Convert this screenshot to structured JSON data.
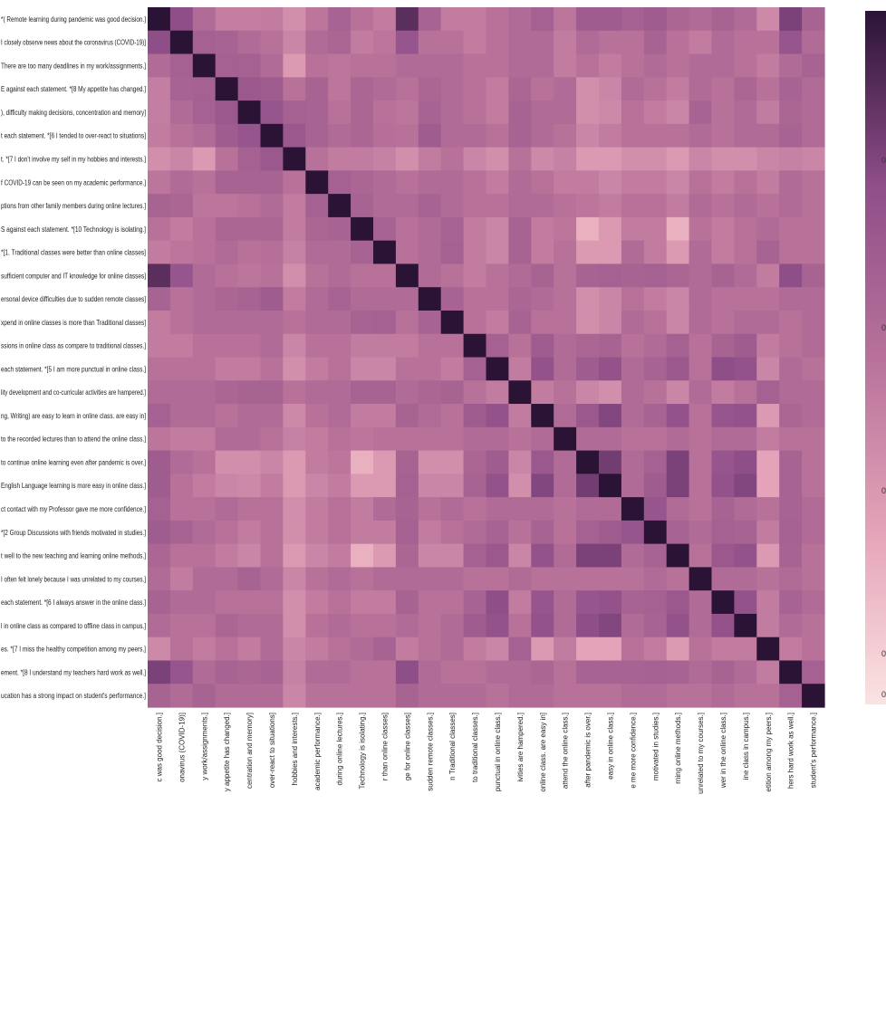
{
  "chart_data": {
    "type": "heatmap",
    "title": "",
    "xlabel": "",
    "ylabel": "",
    "row_labels": [
      "*( Remote learning during pandemic was good decision.]",
      "I closely observe news about the coronavirus (COVID-19)]",
      "There are too many deadlines in my work/assignments.]",
      "E against each statement. *[8 My appetite has changed.]",
      "), difficulty making decisions, concentration and memory]",
      "t each statement. *[6 I tended to over-react to situations]",
      "t. *[7 I don't involve my self in my hobbies and interests.]",
      "f COVID-19 can be seen on my academic performance.]",
      "ptions from other family members during online lectures.]",
      "S against each statement. *[10 Technology is isolating.]",
      "*[1. Traditional classes were better than online classes]",
      "sufficient computer and IT knowledge for online classes]",
      "ersonal device difficulties due to sudden remote classes]",
      "xpend in online classes is more than Traditional classes]",
      "ssions in online class as compare to traditional classes.]",
      "each statement. *[5 I am more punctual in online class.]",
      "lity development and co-curricular activities are hampered.]",
      "ng, Writing) are easy to learn in online class. are easy in]",
      "to the recorded lectures than to attend the online class.]",
      "to continue online learning even after pandemic is over.]",
      "English Language learning is more easy in online class.]",
      "ct contact with my Professor gave me more confidence.]",
      "*[2 Group Discussions with friends motivated in studies.]",
      "t well to the new teaching and learning online methods.]",
      "I often felt lonely because I was unrelated to my courses.]",
      "each statement. *[6 I always answer in the online class.]",
      "l in online class as compared to offline class in campus.]",
      "es. *[7 I miss the healthy competition among my peers.]",
      "ement. *[8 I understand my teachers hard work as well.]",
      "ucation has a strong impact on student's performance.]"
    ],
    "col_labels": [
      "c was good decision.]",
      "onavirus (COVID-19)]",
      "y work/assignments.]",
      "y appetite has changed.]",
      "centration and memory]",
      "over-react to situations]",
      "hobbies and interests.]",
      "academic performance.]",
      "during online lectures.]",
      "Technology is isolating.]",
      "r than online classes]",
      "ge for online classes]",
      "sudden remote classes.]",
      "n Traditional classes]",
      "to traditional classes.]",
      "punctual in online class.]",
      "ivities are hampered.]",
      "online class. are easy in]",
      "attend the online class.]",
      "after pandemic is over.]",
      "easy in online class.]",
      "e me more confidence.]",
      "motivated in studies.]",
      "rning online methods.]",
      "unrelated to my courses.]",
      "wer in the online class.]",
      "ine class in campus.]",
      "etition among my peers.]",
      "hers hard work as well.]",
      "student's performance.]"
    ],
    "colorbar_ticks": [
      "0",
      "0",
      "0",
      "0",
      "0"
    ],
    "vmin": 0.0,
    "vmax": 1.0,
    "colors": {
      "low": "#fbe3e2",
      "mid_low": "#e4a3b8",
      "mid": "#b8729a",
      "mid_high": "#8e4e88",
      "high": "#2b1336"
    },
    "values": [
      [
        1,
        0.75,
        0.55,
        0.44,
        0.44,
        0.45,
        0.35,
        0.48,
        0.6,
        0.5,
        0.45,
        0.88,
        0.6,
        0.45,
        0.45,
        0.5,
        0.55,
        0.62,
        0.48,
        0.65,
        0.65,
        0.62,
        0.65,
        0.58,
        0.55,
        0.6,
        0.55,
        0.38,
        0.8,
        0.6
      ],
      [
        0.75,
        1,
        0.62,
        0.6,
        0.55,
        0.5,
        0.4,
        0.55,
        0.58,
        0.45,
        0.48,
        0.7,
        0.5,
        0.5,
        0.45,
        0.5,
        0.55,
        0.55,
        0.45,
        0.55,
        0.5,
        0.5,
        0.6,
        0.5,
        0.45,
        0.55,
        0.5,
        0.5,
        0.7,
        0.55
      ],
      [
        0.55,
        0.62,
        1,
        0.62,
        0.62,
        0.55,
        0.3,
        0.5,
        0.48,
        0.5,
        0.5,
        0.55,
        0.55,
        0.55,
        0.5,
        0.5,
        0.55,
        0.55,
        0.45,
        0.5,
        0.45,
        0.5,
        0.55,
        0.5,
        0.55,
        0.55,
        0.5,
        0.45,
        0.55,
        0.6
      ],
      [
        0.44,
        0.6,
        0.62,
        1,
        0.68,
        0.65,
        0.5,
        0.6,
        0.48,
        0.58,
        0.55,
        0.5,
        0.58,
        0.55,
        0.5,
        0.45,
        0.58,
        0.5,
        0.55,
        0.35,
        0.4,
        0.55,
        0.5,
        0.45,
        0.55,
        0.5,
        0.58,
        0.5,
        0.6,
        0.55
      ],
      [
        0.44,
        0.55,
        0.62,
        0.68,
        1,
        0.7,
        0.62,
        0.6,
        0.5,
        0.58,
        0.5,
        0.48,
        0.6,
        0.55,
        0.5,
        0.45,
        0.6,
        0.55,
        0.55,
        0.35,
        0.38,
        0.5,
        0.45,
        0.4,
        0.6,
        0.5,
        0.55,
        0.45,
        0.58,
        0.55
      ],
      [
        0.45,
        0.5,
        0.55,
        0.65,
        0.7,
        1,
        0.68,
        0.6,
        0.55,
        0.58,
        0.52,
        0.5,
        0.65,
        0.55,
        0.55,
        0.5,
        0.6,
        0.55,
        0.5,
        0.4,
        0.45,
        0.5,
        0.5,
        0.5,
        0.55,
        0.5,
        0.55,
        0.55,
        0.6,
        0.55
      ],
      [
        0.35,
        0.4,
        0.3,
        0.5,
        0.62,
        0.68,
        1,
        0.5,
        0.45,
        0.45,
        0.42,
        0.35,
        0.45,
        0.5,
        0.4,
        0.35,
        0.5,
        0.38,
        0.42,
        0.3,
        0.3,
        0.35,
        0.35,
        0.3,
        0.4,
        0.35,
        0.35,
        0.4,
        0.42,
        0.4
      ],
      [
        0.48,
        0.55,
        0.5,
        0.6,
        0.6,
        0.6,
        0.5,
        1,
        0.62,
        0.58,
        0.55,
        0.5,
        0.55,
        0.55,
        0.5,
        0.45,
        0.55,
        0.5,
        0.45,
        0.45,
        0.4,
        0.45,
        0.45,
        0.4,
        0.5,
        0.45,
        0.5,
        0.45,
        0.55,
        0.5
      ],
      [
        0.6,
        0.58,
        0.48,
        0.48,
        0.5,
        0.55,
        0.45,
        0.62,
        1,
        0.6,
        0.55,
        0.55,
        0.6,
        0.55,
        0.5,
        0.5,
        0.55,
        0.55,
        0.5,
        0.48,
        0.45,
        0.5,
        0.5,
        0.45,
        0.55,
        0.5,
        0.55,
        0.5,
        0.55,
        0.5
      ],
      [
        0.5,
        0.45,
        0.5,
        0.58,
        0.58,
        0.58,
        0.45,
        0.58,
        0.6,
        1,
        0.6,
        0.5,
        0.55,
        0.6,
        0.45,
        0.4,
        0.6,
        0.45,
        0.48,
        0.2,
        0.3,
        0.45,
        0.45,
        0.2,
        0.5,
        0.45,
        0.5,
        0.55,
        0.5,
        0.5
      ],
      [
        0.45,
        0.48,
        0.5,
        0.55,
        0.5,
        0.52,
        0.42,
        0.55,
        0.55,
        0.6,
        1,
        0.5,
        0.55,
        0.62,
        0.45,
        0.4,
        0.6,
        0.45,
        0.5,
        0.3,
        0.3,
        0.55,
        0.45,
        0.3,
        0.55,
        0.45,
        0.5,
        0.6,
        0.5,
        0.5
      ],
      [
        0.88,
        0.7,
        0.55,
        0.5,
        0.48,
        0.5,
        0.35,
        0.5,
        0.55,
        0.5,
        0.5,
        1,
        0.55,
        0.5,
        0.45,
        0.5,
        0.55,
        0.6,
        0.5,
        0.6,
        0.62,
        0.6,
        0.62,
        0.58,
        0.55,
        0.6,
        0.55,
        0.45,
        0.75,
        0.6
      ],
      [
        0.6,
        0.5,
        0.55,
        0.58,
        0.6,
        0.65,
        0.45,
        0.55,
        0.6,
        0.55,
        0.55,
        0.55,
        1,
        0.6,
        0.5,
        0.5,
        0.58,
        0.55,
        0.5,
        0.35,
        0.4,
        0.5,
        0.45,
        0.4,
        0.55,
        0.5,
        0.5,
        0.5,
        0.55,
        0.55
      ],
      [
        0.45,
        0.5,
        0.55,
        0.55,
        0.55,
        0.55,
        0.5,
        0.55,
        0.55,
        0.6,
        0.62,
        0.5,
        0.6,
        1,
        0.5,
        0.45,
        0.6,
        0.5,
        0.5,
        0.35,
        0.4,
        0.55,
        0.5,
        0.4,
        0.55,
        0.5,
        0.55,
        0.55,
        0.5,
        0.55
      ],
      [
        0.45,
        0.45,
        0.5,
        0.5,
        0.5,
        0.55,
        0.4,
        0.5,
        0.5,
        0.45,
        0.45,
        0.45,
        0.5,
        0.5,
        1,
        0.62,
        0.5,
        0.65,
        0.55,
        0.58,
        0.6,
        0.5,
        0.55,
        0.62,
        0.5,
        0.6,
        0.65,
        0.45,
        0.5,
        0.55
      ],
      [
        0.5,
        0.5,
        0.5,
        0.45,
        0.45,
        0.5,
        0.35,
        0.45,
        0.5,
        0.4,
        0.4,
        0.5,
        0.5,
        0.45,
        0.62,
        1,
        0.45,
        0.72,
        0.55,
        0.65,
        0.72,
        0.55,
        0.6,
        0.68,
        0.5,
        0.75,
        0.72,
        0.4,
        0.55,
        0.5
      ],
      [
        0.55,
        0.55,
        0.55,
        0.58,
        0.6,
        0.6,
        0.5,
        0.55,
        0.55,
        0.6,
        0.6,
        0.55,
        0.58,
        0.6,
        0.5,
        0.45,
        1,
        0.45,
        0.5,
        0.4,
        0.35,
        0.55,
        0.5,
        0.4,
        0.55,
        0.45,
        0.5,
        0.62,
        0.55,
        0.55
      ],
      [
        0.62,
        0.55,
        0.55,
        0.5,
        0.55,
        0.55,
        0.38,
        0.5,
        0.55,
        0.45,
        0.45,
        0.6,
        0.55,
        0.5,
        0.65,
        0.72,
        0.45,
        1,
        0.55,
        0.68,
        0.78,
        0.55,
        0.6,
        0.72,
        0.5,
        0.7,
        0.72,
        0.3,
        0.58,
        0.55
      ],
      [
        0.48,
        0.45,
        0.45,
        0.55,
        0.55,
        0.5,
        0.42,
        0.45,
        0.5,
        0.48,
        0.5,
        0.5,
        0.5,
        0.5,
        0.55,
        0.55,
        0.5,
        0.55,
        1,
        0.55,
        0.55,
        0.5,
        0.5,
        0.55,
        0.5,
        0.55,
        0.55,
        0.45,
        0.5,
        0.5
      ],
      [
        0.65,
        0.55,
        0.5,
        0.35,
        0.35,
        0.4,
        0.3,
        0.45,
        0.48,
        0.2,
        0.3,
        0.6,
        0.35,
        0.35,
        0.58,
        0.65,
        0.4,
        0.68,
        0.55,
        1,
        0.82,
        0.55,
        0.62,
        0.8,
        0.5,
        0.7,
        0.75,
        0.25,
        0.6,
        0.5
      ],
      [
        0.65,
        0.5,
        0.45,
        0.4,
        0.38,
        0.45,
        0.3,
        0.4,
        0.45,
        0.3,
        0.3,
        0.62,
        0.4,
        0.4,
        0.6,
        0.72,
        0.35,
        0.78,
        0.55,
        0.82,
        1,
        0.55,
        0.65,
        0.8,
        0.5,
        0.72,
        0.78,
        0.25,
        0.6,
        0.5
      ],
      [
        0.62,
        0.5,
        0.5,
        0.55,
        0.5,
        0.5,
        0.35,
        0.45,
        0.5,
        0.45,
        0.55,
        0.6,
        0.5,
        0.55,
        0.5,
        0.55,
        0.55,
        0.55,
        0.5,
        0.55,
        0.55,
        1,
        0.7,
        0.55,
        0.5,
        0.6,
        0.55,
        0.5,
        0.6,
        0.55
      ],
      [
        0.65,
        0.6,
        0.55,
        0.5,
        0.45,
        0.5,
        0.35,
        0.45,
        0.5,
        0.45,
        0.45,
        0.62,
        0.45,
        0.5,
        0.55,
        0.6,
        0.5,
        0.6,
        0.5,
        0.62,
        0.65,
        0.7,
        1,
        0.6,
        0.55,
        0.62,
        0.6,
        0.45,
        0.62,
        0.55
      ],
      [
        0.58,
        0.5,
        0.5,
        0.45,
        0.4,
        0.5,
        0.3,
        0.4,
        0.45,
        0.2,
        0.3,
        0.58,
        0.4,
        0.4,
        0.62,
        0.68,
        0.4,
        0.72,
        0.55,
        0.8,
        0.8,
        0.55,
        0.6,
        1,
        0.5,
        0.68,
        0.72,
        0.3,
        0.6,
        0.5
      ],
      [
        0.55,
        0.45,
        0.55,
        0.55,
        0.6,
        0.55,
        0.4,
        0.5,
        0.55,
        0.5,
        0.55,
        0.55,
        0.55,
        0.55,
        0.5,
        0.5,
        0.55,
        0.5,
        0.5,
        0.5,
        0.5,
        0.5,
        0.55,
        0.5,
        1,
        0.55,
        0.55,
        0.5,
        0.55,
        0.5
      ],
      [
        0.6,
        0.55,
        0.55,
        0.5,
        0.5,
        0.5,
        0.35,
        0.45,
        0.5,
        0.45,
        0.45,
        0.6,
        0.5,
        0.5,
        0.6,
        0.75,
        0.45,
        0.7,
        0.55,
        0.7,
        0.72,
        0.6,
        0.62,
        0.68,
        0.55,
        1,
        0.72,
        0.45,
        0.6,
        0.55
      ],
      [
        0.55,
        0.5,
        0.5,
        0.58,
        0.55,
        0.55,
        0.35,
        0.5,
        0.55,
        0.5,
        0.5,
        0.55,
        0.5,
        0.55,
        0.65,
        0.72,
        0.5,
        0.72,
        0.55,
        0.75,
        0.78,
        0.55,
        0.6,
        0.72,
        0.55,
        0.72,
        1,
        0.45,
        0.55,
        0.5
      ],
      [
        0.38,
        0.5,
        0.45,
        0.5,
        0.45,
        0.55,
        0.4,
        0.45,
        0.5,
        0.55,
        0.6,
        0.45,
        0.5,
        0.55,
        0.45,
        0.4,
        0.62,
        0.3,
        0.45,
        0.25,
        0.25,
        0.5,
        0.45,
        0.3,
        0.5,
        0.45,
        0.45,
        1,
        0.45,
        0.5
      ],
      [
        0.8,
        0.7,
        0.55,
        0.6,
        0.58,
        0.6,
        0.42,
        0.55,
        0.55,
        0.5,
        0.5,
        0.75,
        0.55,
        0.5,
        0.5,
        0.55,
        0.55,
        0.58,
        0.5,
        0.6,
        0.6,
        0.6,
        0.62,
        0.6,
        0.55,
        0.6,
        0.55,
        0.45,
        1,
        0.62
      ],
      [
        0.6,
        0.55,
        0.6,
        0.55,
        0.55,
        0.55,
        0.4,
        0.5,
        0.5,
        0.5,
        0.5,
        0.6,
        0.55,
        0.55,
        0.55,
        0.5,
        0.55,
        0.55,
        0.5,
        0.5,
        0.5,
        0.55,
        0.55,
        0.5,
        0.5,
        0.55,
        0.5,
        0.5,
        0.62,
        1
      ]
    ]
  }
}
